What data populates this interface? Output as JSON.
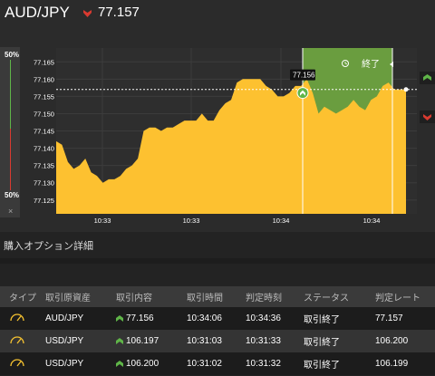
{
  "header": {
    "pair": "AUD/JPY",
    "rate": "77.157",
    "rate_icon": "down-arrow-icon"
  },
  "gauge": {
    "top_label": "50%",
    "bottom_label": "50%",
    "close_label": "×"
  },
  "chart_data": {
    "type": "area",
    "y_ticks": [
      "77.165",
      "77.160",
      "77.155",
      "77.150",
      "77.145",
      "77.140",
      "77.135",
      "77.130",
      "77.125"
    ],
    "x_ticks": [
      "10:33",
      "10:33",
      "10:34",
      "10:34"
    ],
    "ylim": [
      77.121,
      77.169
    ],
    "entry_marker_label": "77.156",
    "expiry_label": "終了",
    "current_rate": 77.157,
    "series": [
      {
        "values": [
          77.142,
          77.141,
          77.136,
          77.134,
          77.135,
          77.137,
          77.133,
          77.132,
          77.13,
          77.131,
          77.131,
          77.132,
          77.134,
          77.135,
          77.137,
          77.145,
          77.146,
          77.146,
          77.145,
          77.146,
          77.146,
          77.147,
          77.148,
          77.148,
          77.148,
          77.15,
          77.148,
          77.148,
          77.151,
          77.153,
          77.154,
          77.159,
          77.16,
          77.16,
          77.16,
          77.16,
          77.158,
          77.157,
          77.155,
          77.155,
          77.156,
          77.158,
          77.158,
          77.16,
          77.156,
          77.15,
          77.152,
          77.151,
          77.15,
          77.151,
          77.152,
          77.154,
          77.152,
          77.151,
          77.154,
          77.155,
          77.158,
          77.159,
          77.157,
          77.157,
          77.157
        ]
      }
    ],
    "colors": {
      "area": "#fdc130",
      "expiry_zone": "#6a9d3f",
      "up": "#5fb548",
      "down": "#d83a30"
    }
  },
  "detail": {
    "title": "購入オプション詳細"
  },
  "table": {
    "headers": [
      "タイプ",
      "取引原資産",
      "取引内容",
      "取引時間",
      "判定時刻",
      "ステータス",
      "判定レート"
    ],
    "rows": [
      {
        "type_icon": "gauge-icon",
        "asset": "AUD/JPY",
        "content": "77.156",
        "time": "10:34:06",
        "judge": "10:34:36",
        "status": "取引終了",
        "rate": "77.157"
      },
      {
        "type_icon": "gauge-icon",
        "asset": "USD/JPY",
        "content": "106.197",
        "time": "10:31:03",
        "judge": "10:31:33",
        "status": "取引終了",
        "rate": "106.200"
      },
      {
        "type_icon": "gauge-icon",
        "asset": "USD/JPY",
        "content": "106.200",
        "time": "10:31:02",
        "judge": "10:31:32",
        "status": "取引終了",
        "rate": "106.199"
      }
    ]
  }
}
